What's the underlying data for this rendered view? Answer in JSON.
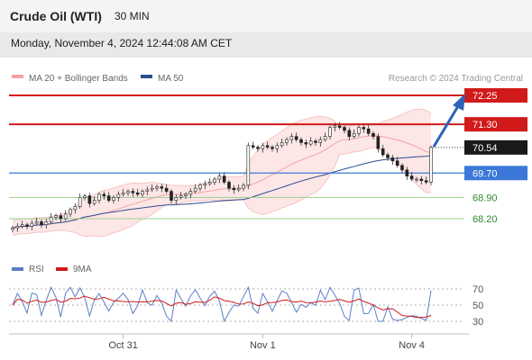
{
  "header": {
    "title": "Crude Oil (WTI)",
    "interval": "30 MIN",
    "datetime": "Monday, November 4, 2024 12:44:08 AM CET"
  },
  "legend": {
    "ma20": "MA 20 + Bollinger Bands",
    "ma50": "MA 50",
    "rsi": "RSI",
    "ma9": "9MA"
  },
  "source": "Research © 2024 Trading Central",
  "colors": {
    "red_level": "#d11a1a",
    "blue_level": "#3b78d8",
    "green_level": "#9ccf8f",
    "green_text": "#2b8a2b",
    "current": "#1a1a1a",
    "ma20": "#f3a3a3",
    "ma50": "#2c4f91",
    "band_fill": "#fde0e0",
    "arrow": "#2e63b8",
    "rsi": "#5b7fc7",
    "ma9": "#d11a1a"
  },
  "chart_data": [
    {
      "type": "candlestick",
      "title": "Crude Oil (WTI)",
      "x_tick_labels": [
        "Oct 31",
        "Nov 1",
        "Nov 4"
      ],
      "ylim": [
        67.5,
        73.0
      ],
      "levels": [
        {
          "value": 72.25,
          "label": "72.25",
          "style": "resistance"
        },
        {
          "value": 71.3,
          "label": "71.30",
          "style": "resistance"
        },
        {
          "value": 70.54,
          "label": "70.54",
          "style": "current"
        },
        {
          "value": 69.7,
          "label": "69.70",
          "style": "pivot"
        },
        {
          "value": 68.9,
          "label": "68.90",
          "style": "support"
        },
        {
          "value": 68.2,
          "label": "68.20",
          "style": "support"
        }
      ],
      "close_series": [
        67.9,
        67.95,
        68.0,
        67.95,
        68.05,
        68.1,
        68.0,
        68.1,
        68.25,
        68.3,
        68.2,
        68.35,
        68.5,
        68.6,
        68.9,
        68.95,
        68.7,
        68.8,
        69.0,
        68.95,
        68.8,
        68.9,
        69.0,
        69.05,
        69.1,
        69.05,
        69.0,
        69.1,
        69.15,
        69.2,
        69.25,
        69.2,
        69.1,
        68.8,
        68.9,
        68.95,
        69.0,
        69.1,
        69.2,
        69.3,
        69.35,
        69.4,
        69.5,
        69.6,
        69.4,
        69.2,
        69.15,
        69.2,
        69.3,
        70.6,
        70.55,
        70.5,
        70.6,
        70.55,
        70.5,
        70.6,
        70.7,
        70.8,
        70.9,
        70.8,
        70.7,
        70.65,
        70.75,
        70.7,
        70.8,
        70.9,
        71.2,
        71.25,
        71.2,
        71.1,
        70.9,
        71.0,
        71.2,
        71.15,
        71.0,
        70.9,
        70.5,
        70.3,
        70.2,
        70.1,
        69.95,
        69.8,
        69.6,
        69.5,
        69.5,
        69.45,
        69.4,
        70.54
      ],
      "indicators": [
        "MA 20 + Bollinger Bands",
        "MA 50"
      ]
    },
    {
      "type": "line",
      "title": "RSI",
      "series": [
        {
          "name": "RSI"
        },
        {
          "name": "9MA"
        }
      ],
      "y_tick_labels": [
        "70",
        "50",
        "30"
      ],
      "ylim": [
        25,
        75
      ],
      "levels": [
        70,
        50,
        30
      ],
      "x_tick_labels": [
        "Oct 31",
        "Nov 1",
        "Nov 4"
      ]
    }
  ]
}
